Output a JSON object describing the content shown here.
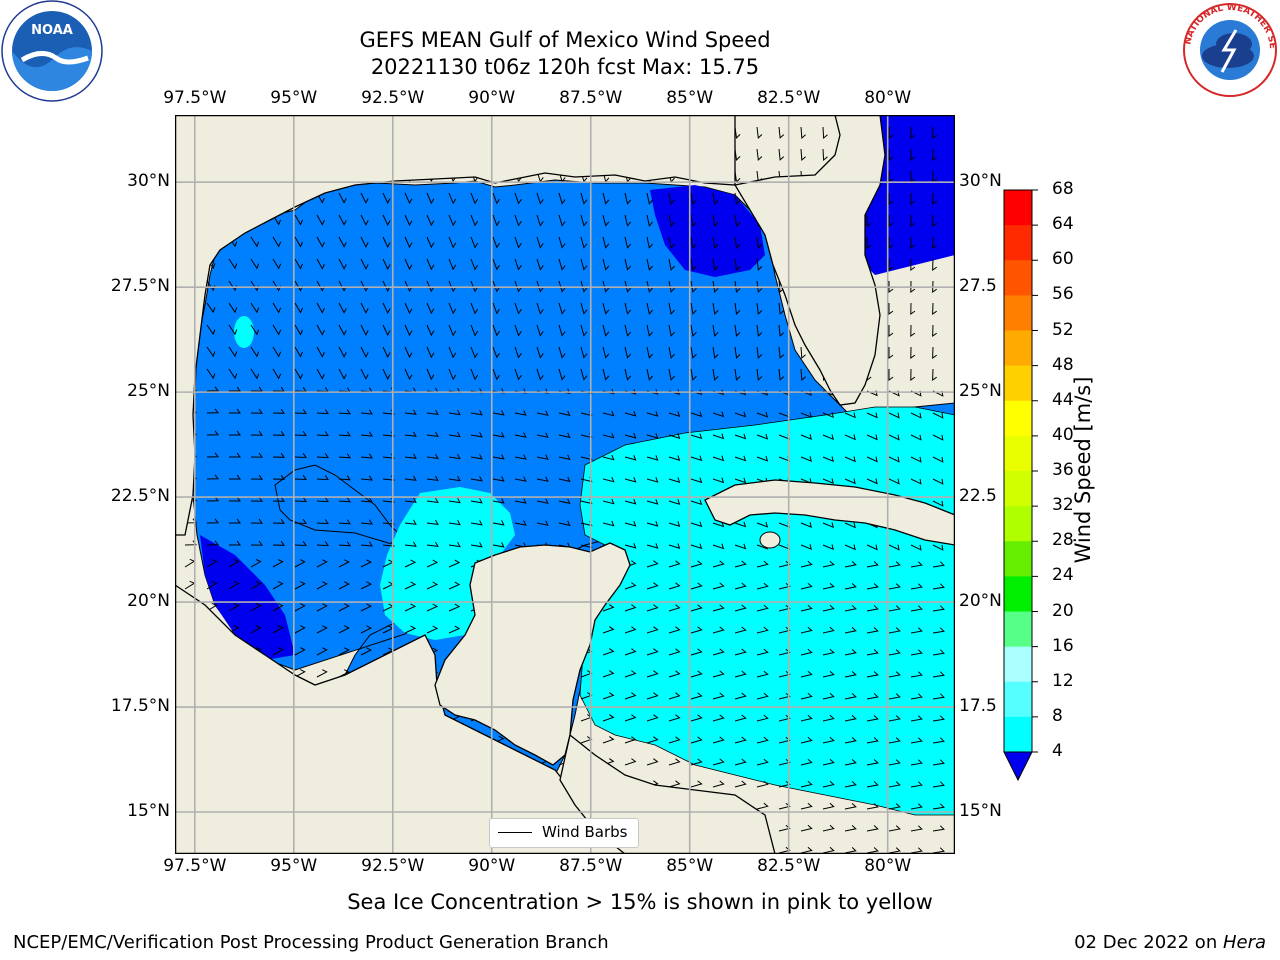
{
  "title": {
    "line1": "GEFS MEAN Gulf of Mexico Wind Speed",
    "line2": "20221130 t06z 120h fcst   Max: 15.75"
  },
  "map": {
    "region": "Gulf of Mexico",
    "lon_range": [
      -98.0,
      -78.3
    ],
    "lat_range": [
      14.0,
      31.6
    ],
    "lon_ticks": [
      "97.5°W",
      "95°W",
      "92.5°W",
      "90°W",
      "87.5°W",
      "85°W",
      "82.5°W",
      "80°W"
    ],
    "lat_ticks_left": [
      "30°N",
      "27.5°N",
      "25°N",
      "22.5°N",
      "20°N",
      "17.5°N",
      "15°N"
    ],
    "lat_ticks_right": [
      "30°N",
      "27.5",
      "25°N",
      "22.5",
      "20°N",
      "17.5",
      "15°N"
    ],
    "land_color": "#efedde",
    "grid_color": "#b0b0b0"
  },
  "legend": {
    "label": "Wind Barbs"
  },
  "colorbar": {
    "title": "Wind Speed [m/s]",
    "ticks": [
      "68",
      "64",
      "60",
      "56",
      "52",
      "48",
      "44",
      "40",
      "36",
      "32",
      "28",
      "24",
      "20",
      "16",
      "12",
      "8",
      "4"
    ],
    "colors": [
      "#ff0000",
      "#ff2a00",
      "#ff5500",
      "#ff8000",
      "#ffaa00",
      "#ffd000",
      "#ffff00",
      "#e9ff00",
      "#d0ff00",
      "#b0ff00",
      "#66ee00",
      "#00ee00",
      "#55ff88",
      "#aaffff",
      "#55ffff",
      "#00ffff",
      "#0080ff"
    ],
    "extend_color": "#0000ee"
  },
  "wind_levels": {
    "4-8": "#0080ff",
    "8-12": "#00ffff",
    "below-4": "#0000ee"
  },
  "caption": "Sea Ice Concentration > 15% is shown in pink to yellow",
  "footer": {
    "left": "NCEP/EMC/Verification Post Processing Product Generation Branch",
    "date": "02 Dec 2022 on ",
    "machine": "Hera"
  },
  "logos": {
    "noaa_text": "NOAA",
    "nws_text": "NATIONAL WEATHER SERVICE"
  }
}
